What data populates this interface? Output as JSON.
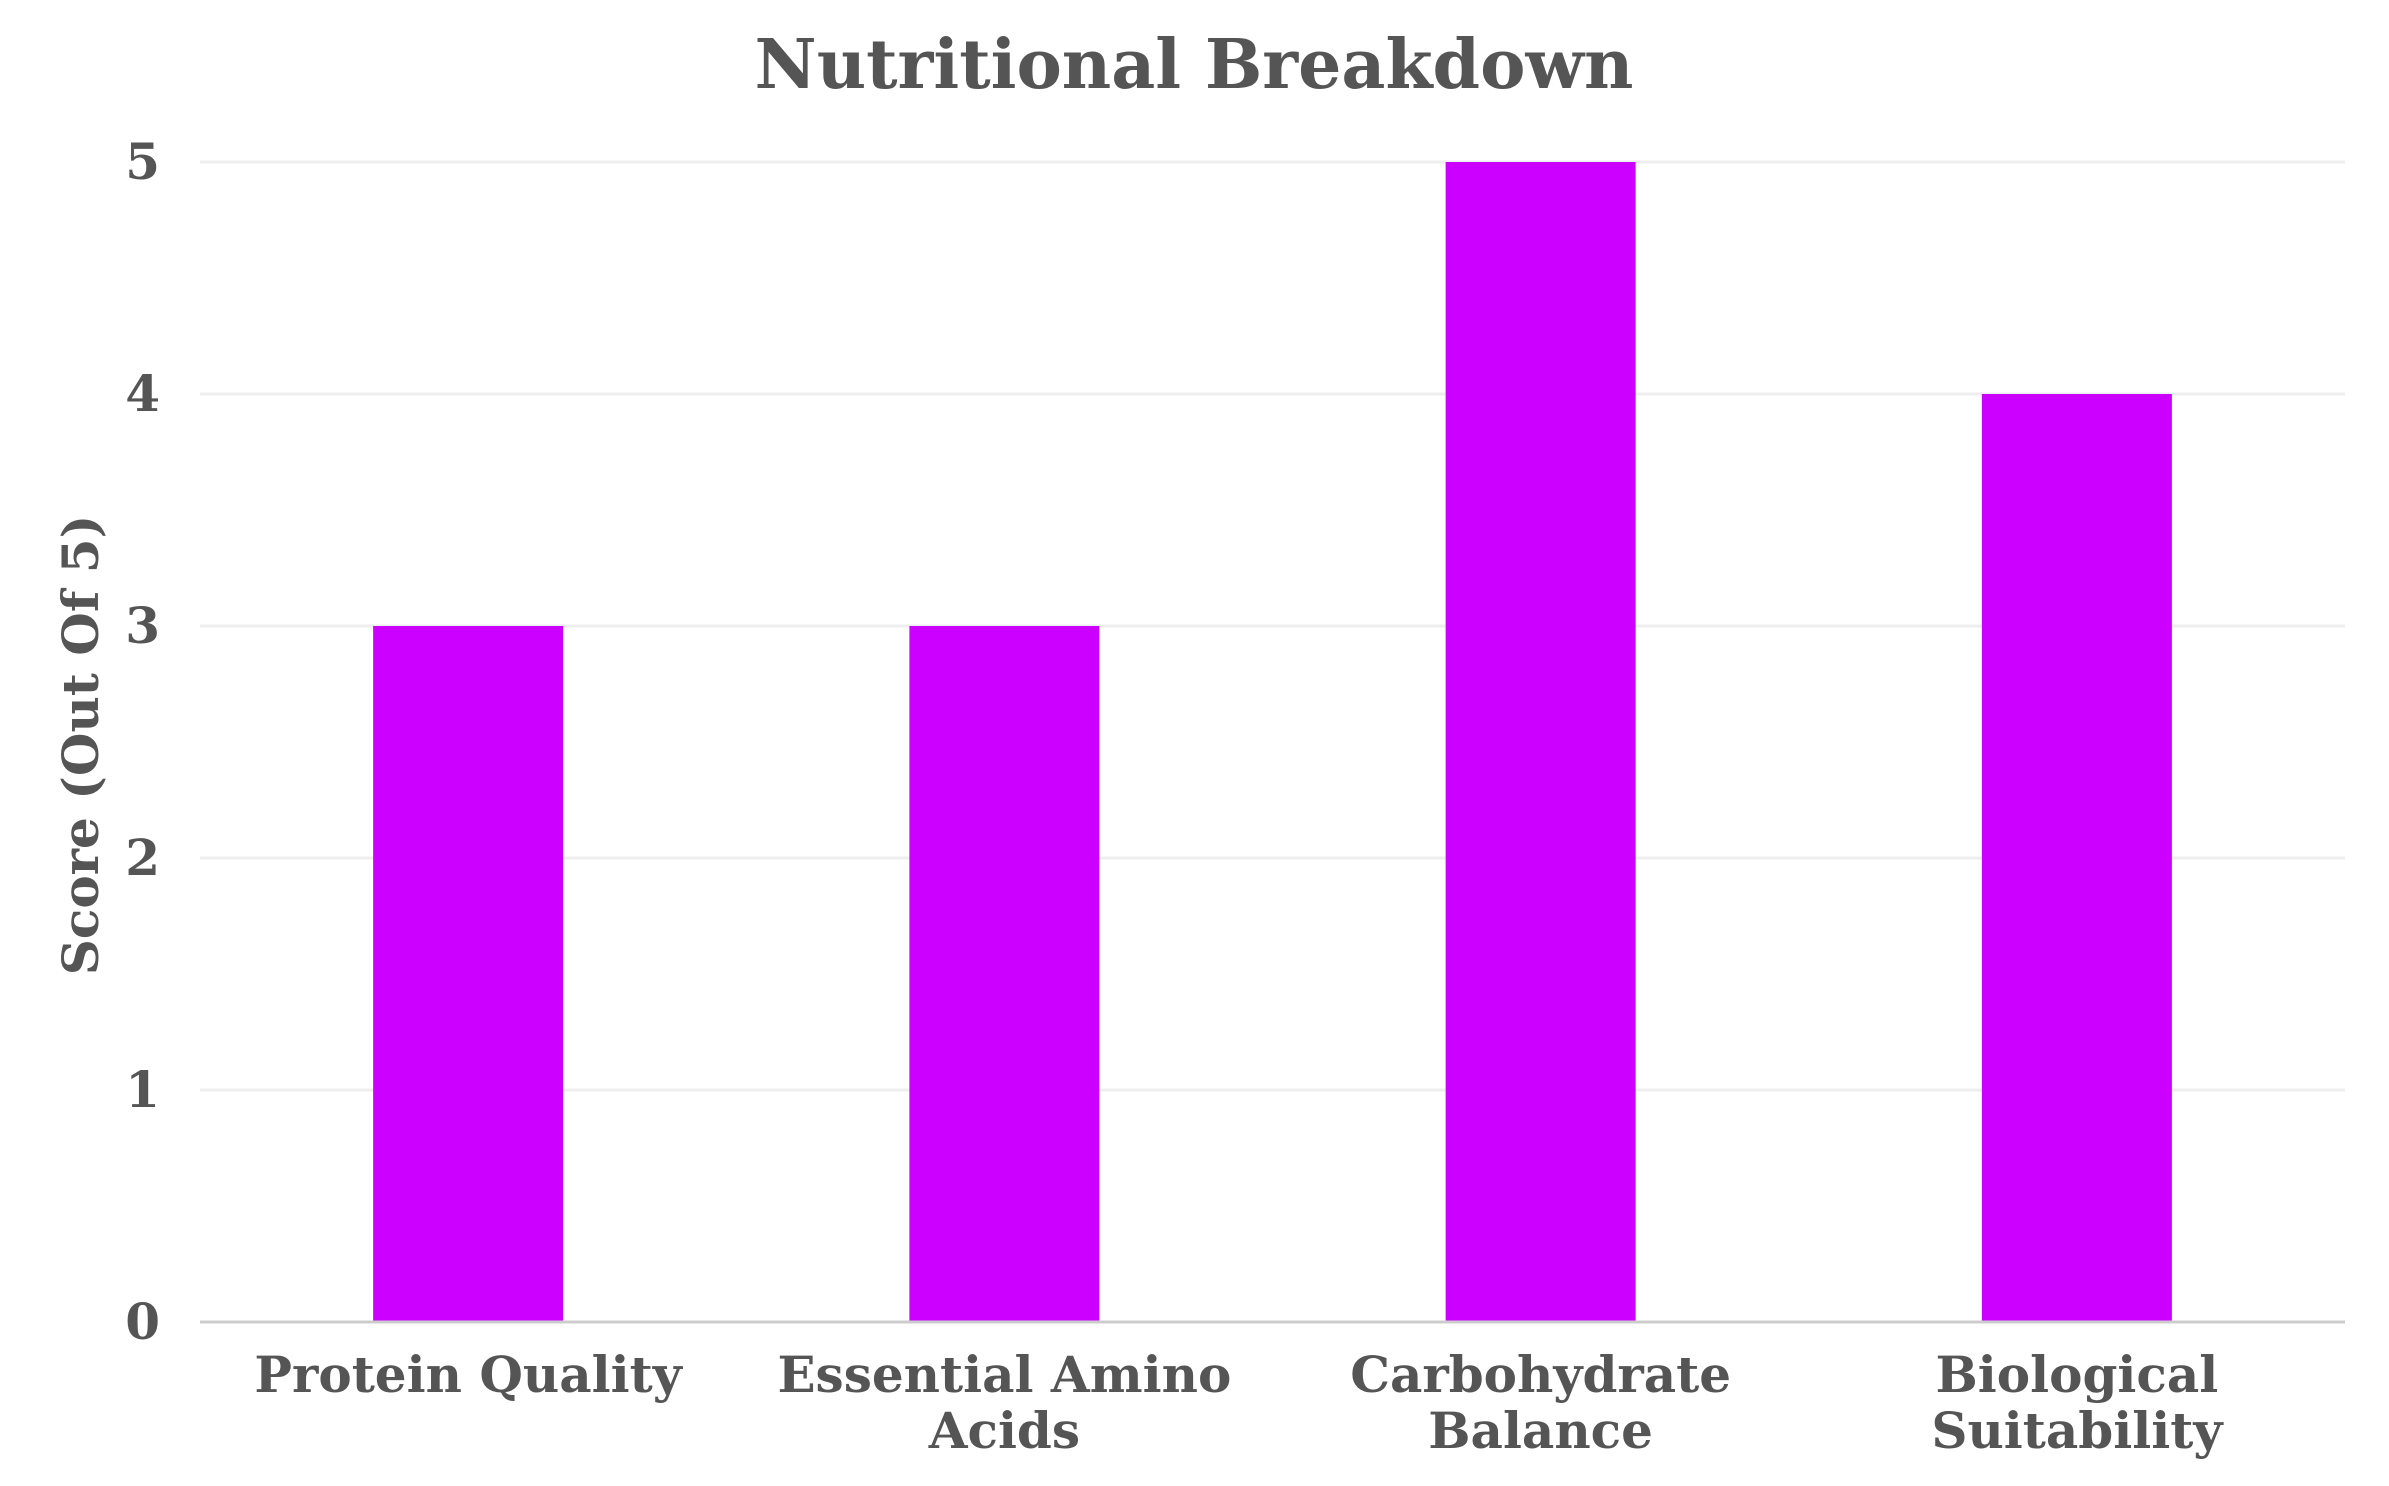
{
  "chart_data": {
    "type": "bar",
    "title": "Nutritional Breakdown",
    "xlabel": "",
    "ylabel": "Score (Out Of 5)",
    "categories": [
      [
        "Protein Quality"
      ],
      [
        "Essential Amino",
        "Acids"
      ],
      [
        "Carbohydrate",
        "Balance"
      ],
      [
        "Biological",
        "Suitability"
      ]
    ],
    "values": [
      3,
      3,
      5,
      4
    ],
    "ylim": [
      0,
      5
    ],
    "yticks": [
      "0",
      "1",
      "2",
      "3",
      "4",
      "5"
    ],
    "grid": true,
    "bar_color": "#CC00FF",
    "gridline_color": "#EEEEEE",
    "axis_color": "#CCCCCC",
    "text_color": "#555555"
  }
}
